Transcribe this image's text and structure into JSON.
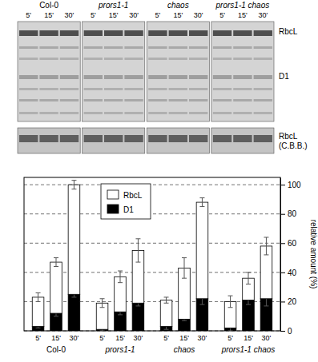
{
  "gel": {
    "groups": [
      "Col-0",
      "prors1-1",
      "chaos",
      "prors1-1 chaos"
    ],
    "lanes": [
      "5'",
      "15'",
      "30'"
    ],
    "band_labels": [
      "RbcL",
      "D1"
    ],
    "stain_label": [
      "RbcL",
      "(C.B.B.)"
    ]
  },
  "chart_data": {
    "type": "bar",
    "stacked": true,
    "categories": [
      "5'",
      "15'",
      "30'",
      "5'",
      "15'",
      "30'",
      "5'",
      "15'",
      "30'",
      "5'",
      "15'",
      "30'"
    ],
    "groups": [
      "Col-0",
      "prors1-1",
      "chaos",
      "prors1-1 chaos"
    ],
    "series": [
      {
        "name": "D1",
        "color": "#000000",
        "values": [
          3,
          12,
          25,
          1,
          13,
          19,
          3,
          8,
          22,
          2,
          21,
          22
        ],
        "errors": [
          1,
          2,
          2,
          1,
          2,
          2,
          2,
          1,
          4,
          2,
          3,
          5
        ]
      },
      {
        "name": "RbcL",
        "color": "#ffffff",
        "values": [
          20,
          35,
          75,
          18,
          24,
          36,
          18,
          35,
          66,
          18,
          15,
          36
        ],
        "errors": [
          3,
          3,
          3,
          3,
          4,
          8,
          2,
          7,
          3,
          4,
          4,
          6
        ]
      }
    ],
    "ylim": [
      0,
      105
    ],
    "yticks": [
      0,
      20,
      40,
      60,
      80,
      100
    ],
    "y_label": "relative amount (%)",
    "grid": true,
    "legend": "upper left"
  }
}
